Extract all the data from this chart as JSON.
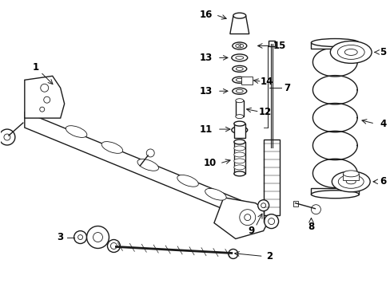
{
  "bg": "#ffffff",
  "lc": "#1a1a1a",
  "fig_w": 4.89,
  "fig_h": 3.6,
  "dpi": 100,
  "lw": 1.0,
  "lw_thin": 0.6,
  "lw_thick": 1.4
}
